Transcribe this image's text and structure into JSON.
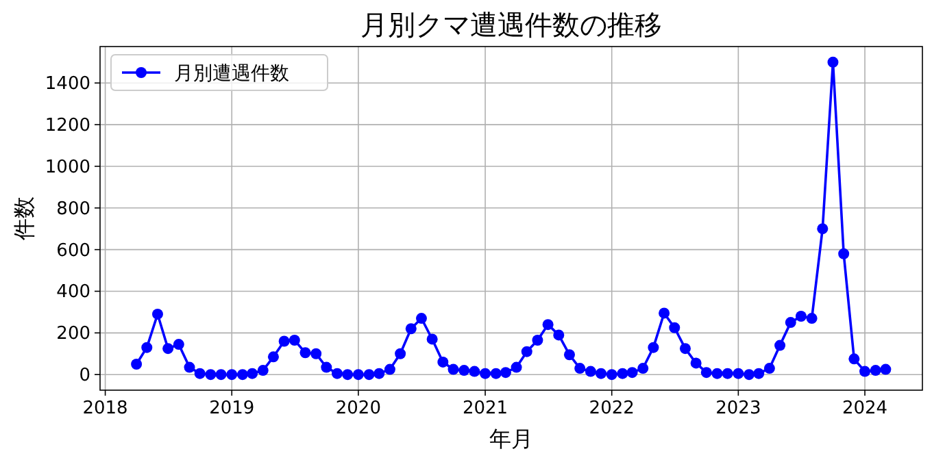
{
  "chart_data": {
    "type": "line",
    "title": "月別クマ遭遇件数の推移",
    "xlabel": "年月",
    "ylabel": "件数",
    "x": [
      "2018-04",
      "2018-05",
      "2018-06",
      "2018-07",
      "2018-08",
      "2018-09",
      "2018-10",
      "2018-11",
      "2018-12",
      "2019-01",
      "2019-02",
      "2019-03",
      "2019-04",
      "2019-05",
      "2019-06",
      "2019-07",
      "2019-08",
      "2019-09",
      "2019-10",
      "2019-11",
      "2019-12",
      "2020-01",
      "2020-02",
      "2020-03",
      "2020-04",
      "2020-05",
      "2020-06",
      "2020-07",
      "2020-08",
      "2020-09",
      "2020-10",
      "2020-11",
      "2020-12",
      "2021-01",
      "2021-02",
      "2021-03",
      "2021-04",
      "2021-05",
      "2021-06",
      "2021-07",
      "2021-08",
      "2021-09",
      "2021-10",
      "2021-11",
      "2021-12",
      "2022-01",
      "2022-02",
      "2022-03",
      "2022-04",
      "2022-05",
      "2022-06",
      "2022-07",
      "2022-08",
      "2022-09",
      "2022-10",
      "2022-11",
      "2022-12",
      "2023-01",
      "2023-02",
      "2023-03",
      "2023-04",
      "2023-05",
      "2023-06",
      "2023-07",
      "2023-08",
      "2023-09",
      "2023-10",
      "2023-11",
      "2023-12",
      "2024-01",
      "2024-02",
      "2024-03"
    ],
    "series": [
      {
        "name": "月別遭遇件数",
        "color": "#0000ff",
        "values": [
          50,
          130,
          290,
          125,
          145,
          35,
          5,
          0,
          0,
          0,
          0,
          5,
          20,
          85,
          160,
          165,
          105,
          100,
          35,
          5,
          0,
          0,
          0,
          5,
          25,
          100,
          220,
          270,
          170,
          60,
          25,
          20,
          15,
          5,
          5,
          10,
          35,
          110,
          165,
          240,
          190,
          95,
          30,
          15,
          5,
          0,
          5,
          10,
          30,
          130,
          295,
          225,
          125,
          55,
          10,
          5,
          5,
          5,
          0,
          5,
          30,
          140,
          250,
          280,
          270,
          700,
          1500,
          580,
          75,
          15,
          20,
          25
        ]
      }
    ],
    "xlim": [
      "2017-12-17",
      "2024-06-15"
    ],
    "xticks": [
      "2018",
      "2019",
      "2020",
      "2021",
      "2022",
      "2023",
      "2024"
    ],
    "ylim": [
      -75,
      1575
    ],
    "yticks": [
      0,
      200,
      400,
      600,
      800,
      1000,
      1200,
      1400
    ],
    "grid": true,
    "legend": "top left",
    "marker": "circle",
    "line_style": "solid"
  }
}
